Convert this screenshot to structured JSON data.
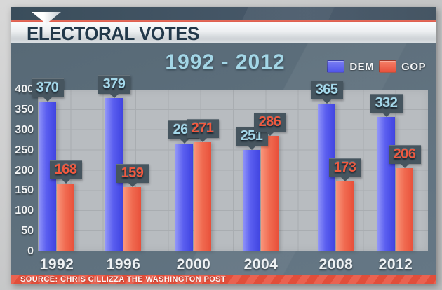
{
  "header": {
    "title": "ELECTORAL VOTES"
  },
  "subtitle": "1992 - 2012",
  "source": "SOURCE: CHRIS CILLIZZA THE WASHINGTON POST",
  "colors": {
    "dem": "#5055ea",
    "gop": "#e8503c",
    "banner_accent_red": "#d95445",
    "banner_dark_slate": "#415361",
    "chart_background": "#5d6f7c",
    "plot_background": "#b8bcc0",
    "dem_label_text": "#a4d8ea",
    "gop_label_text": "#f0593f",
    "subtitle_text": "#a3d6e6"
  },
  "chart_data": {
    "type": "bar",
    "title": "ELECTORAL VOTES",
    "subtitle": "1992 - 2012",
    "categories": [
      "1992",
      "1996",
      "2000",
      "2004",
      "2008",
      "2012"
    ],
    "series": [
      {
        "name": "DEM",
        "color": "#5055ea",
        "values": [
          370,
          379,
          266,
          251,
          365,
          332
        ]
      },
      {
        "name": "GOP",
        "color": "#e8503c",
        "values": [
          168,
          159,
          271,
          286,
          173,
          206
        ]
      }
    ],
    "xlabel": "",
    "ylabel": "",
    "ylim": [
      0,
      400
    ],
    "ytick_step": 50,
    "grid": true,
    "legend_position": "top-right",
    "value_labels": true,
    "source": "SOURCE: CHRIS CILLIZZA THE WASHINGTON POST"
  }
}
